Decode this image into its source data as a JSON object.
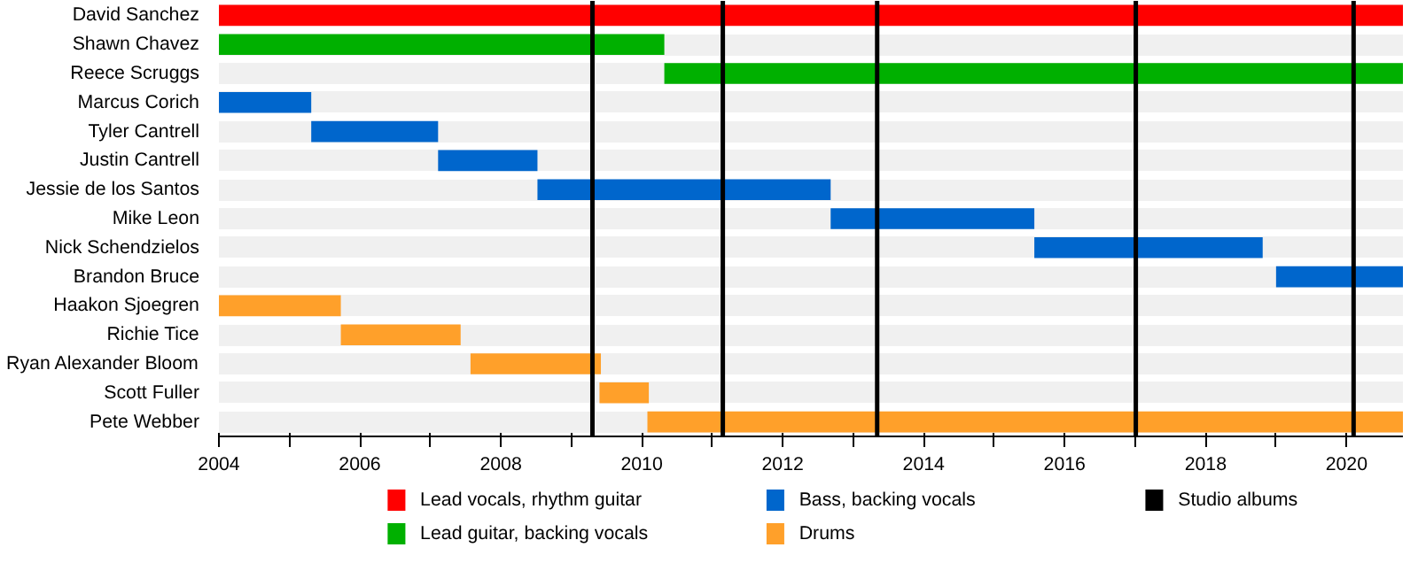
{
  "chart_data": {
    "type": "bar",
    "orientation": "horizontal",
    "categories": [
      "David Sanchez",
      "Shawn Chavez",
      "Reece Scruggs",
      "Marcus Corich",
      "Tyler Cantrell",
      "Justin Cantrell",
      "Jessie de los Santos",
      "Mike Leon",
      "Nick Schendzielos",
      "Brandon Bruce",
      "Haakon Sjoegren",
      "Richie Tice",
      "Ryan Alexander Bloom",
      "Scott Fuller",
      "Pete Webber"
    ],
    "series": [
      {
        "name": "Lead vocals, rhythm guitar",
        "color": "#ff0000",
        "base": [
          2004,
          null,
          null,
          null,
          null,
          null,
          null,
          null,
          null,
          null,
          null,
          null,
          null,
          null,
          null
        ],
        "values": [
          16.8,
          null,
          null,
          null,
          null,
          null,
          null,
          null,
          null,
          null,
          null,
          null,
          null,
          null,
          null
        ]
      },
      {
        "name": "Lead guitar, backing vocals",
        "color": "#00b000",
        "base": [
          null,
          2004,
          2010.32,
          null,
          null,
          null,
          null,
          null,
          null,
          null,
          null,
          null,
          null,
          null,
          null
        ],
        "values": [
          null,
          6.32,
          10.48,
          null,
          null,
          null,
          null,
          null,
          null,
          null,
          null,
          null,
          null,
          null,
          null
        ]
      },
      {
        "name": "Bass, backing vocals",
        "color": "#0066cc",
        "base": [
          null,
          null,
          null,
          2004,
          2005.31,
          2007.11,
          2008.52,
          2012.68,
          2015.57,
          2019.0,
          null,
          null,
          null,
          null,
          null
        ],
        "values": [
          null,
          null,
          null,
          1.31,
          1.8,
          1.41,
          4.16,
          2.89,
          3.24,
          1.8,
          null,
          null,
          null,
          null,
          null
        ]
      },
      {
        "name": "Drums",
        "color": "#ffa02a",
        "base": [
          null,
          null,
          null,
          null,
          null,
          null,
          null,
          null,
          null,
          null,
          2004,
          2005.73,
          2007.57,
          2009.4,
          2010.08
        ],
        "values": [
          null,
          null,
          null,
          null,
          null,
          null,
          null,
          null,
          null,
          null,
          1.73,
          1.7,
          1.85,
          0.7,
          10.72
        ]
      }
    ],
    "ref_lines": [
      {
        "axis": "x",
        "value": 2009.3,
        "label": "Studio albums",
        "color": "#000000"
      },
      {
        "axis": "x",
        "value": 2011.15,
        "label": null,
        "color": "#000000"
      },
      {
        "axis": "x",
        "value": 2013.34,
        "label": null,
        "color": "#000000"
      },
      {
        "axis": "x",
        "value": 2017.01,
        "label": null,
        "color": "#000000"
      },
      {
        "axis": "x",
        "value": 2020.1,
        "label": null,
        "color": "#000000"
      }
    ],
    "xlim": [
      2004,
      2020.8
    ],
    "xticks": [
      2004,
      {
        "value": 2005,
        "label": null
      },
      2006,
      {
        "value": 2007,
        "label": null
      },
      2008,
      {
        "value": 2009,
        "label": null
      },
      2010,
      {
        "value": 2011,
        "label": null
      },
      2012,
      {
        "value": 2013,
        "label": null
      },
      2014,
      {
        "value": 2015,
        "label": null
      },
      2016,
      {
        "value": 2017,
        "label": null
      },
      2018,
      {
        "value": 2019,
        "label": null
      },
      2020
    ],
    "grid": "y",
    "legend": "bottom"
  }
}
